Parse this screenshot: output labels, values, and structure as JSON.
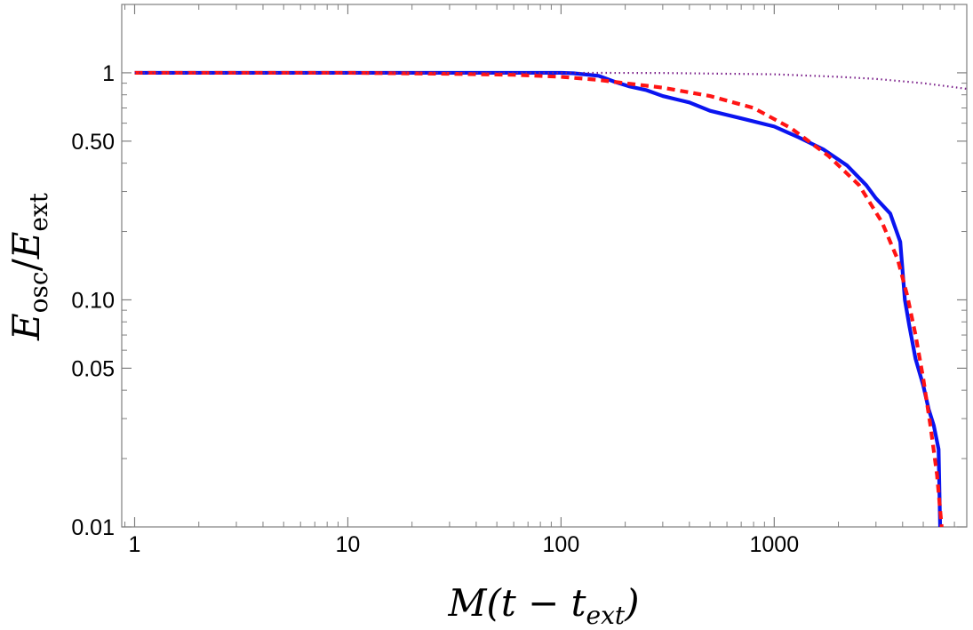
{
  "chart_data": {
    "type": "line",
    "title": "",
    "xlabel": {
      "main": "M(t − t",
      "sub": "ext",
      "close": ")"
    },
    "ylabel": {
      "num": "E",
      "num_sub": "osc",
      "slash": "/",
      "den": "E",
      "den_sub": "ext"
    },
    "x_scale": "log",
    "y_scale": "log",
    "xlim": [
      0.87,
      8000
    ],
    "ylim": [
      0.01,
      2.0
    ],
    "x_ticks": [
      {
        "value": 1,
        "label": "1"
      },
      {
        "value": 10,
        "label": "10"
      },
      {
        "value": 100,
        "label": "100"
      },
      {
        "value": 1000,
        "label": "1000"
      }
    ],
    "y_ticks": [
      {
        "value": 1,
        "label": "1"
      },
      {
        "value": 0.5,
        "label": "0.50"
      },
      {
        "value": 0.1,
        "label": "0.10"
      },
      {
        "value": 0.05,
        "label": "0.05"
      },
      {
        "value": 0.01,
        "label": "0.01"
      }
    ],
    "grid": false,
    "legend": "none",
    "series": [
      {
        "style": "solid",
        "color": "#0a14f0",
        "x": [
          1,
          10,
          100,
          115,
          150,
          180,
          210,
          250,
          300,
          400,
          500,
          700,
          1000,
          1300,
          1700,
          2200,
          2700,
          3000,
          3500,
          3900,
          4100,
          4300,
          4600,
          5000,
          5300,
          5600,
          5900,
          6000
        ],
        "y": [
          1,
          1,
          1,
          0.995,
          0.97,
          0.91,
          0.87,
          0.84,
          0.79,
          0.74,
          0.68,
          0.63,
          0.58,
          0.52,
          0.46,
          0.39,
          0.32,
          0.28,
          0.24,
          0.18,
          0.1,
          0.077,
          0.055,
          0.042,
          0.033,
          0.028,
          0.022,
          0.01
        ]
      },
      {
        "style": "dashed",
        "color": "#ff1414",
        "x": [
          1,
          10,
          30,
          60,
          100,
          150,
          200,
          300,
          500,
          800,
          1200,
          1800,
          2500,
          3200,
          3800,
          4200,
          4600,
          5000,
          5400,
          5800,
          6100
        ],
        "y": [
          1,
          1,
          0.99,
          0.98,
          0.96,
          0.93,
          0.9,
          0.86,
          0.79,
          0.7,
          0.57,
          0.43,
          0.32,
          0.22,
          0.15,
          0.105,
          0.07,
          0.045,
          0.028,
          0.017,
          0.01
        ]
      },
      {
        "style": "dotted",
        "color": "#7a1f8a",
        "x": [
          1,
          10,
          100,
          300,
          1000,
          2000,
          3000,
          5000,
          8000
        ],
        "y": [
          1,
          1,
          1,
          0.998,
          0.985,
          0.96,
          0.94,
          0.9,
          0.85
        ]
      }
    ]
  }
}
